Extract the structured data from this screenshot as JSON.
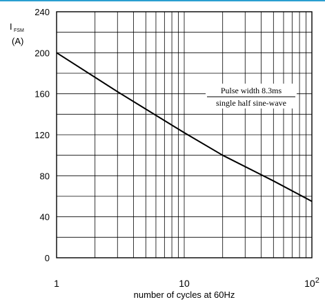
{
  "accent_color": "#2a9fd0",
  "chart_data": {
    "type": "line",
    "xscale": "log",
    "xlim": [
      1,
      100
    ],
    "ylim": [
      0,
      240
    ],
    "xlabel": "number of cycles at 60Hz",
    "ylabel_main": "I",
    "ylabel_sub": "FSM",
    "ylabel_unit": "(A)",
    "x_ticks": [
      {
        "value": 1,
        "base": "1",
        "exp": ""
      },
      {
        "value": 10,
        "base": "10",
        "exp": ""
      },
      {
        "value": 100,
        "base": "10",
        "exp": "2"
      }
    ],
    "y_ticks": [
      0,
      40,
      80,
      120,
      160,
      200,
      240
    ],
    "y_gridlines": [
      0,
      20,
      40,
      60,
      80,
      100,
      120,
      140,
      160,
      180,
      200,
      220,
      240
    ],
    "grid": true,
    "annotation": [
      "Pulse width 8.3ms",
      "single half sine-wave"
    ],
    "series": [
      {
        "x": [
          1,
          2,
          3,
          5,
          10,
          20,
          50,
          100
        ],
        "y": [
          200,
          176,
          162,
          145,
          122,
          100,
          75,
          55
        ]
      }
    ]
  }
}
